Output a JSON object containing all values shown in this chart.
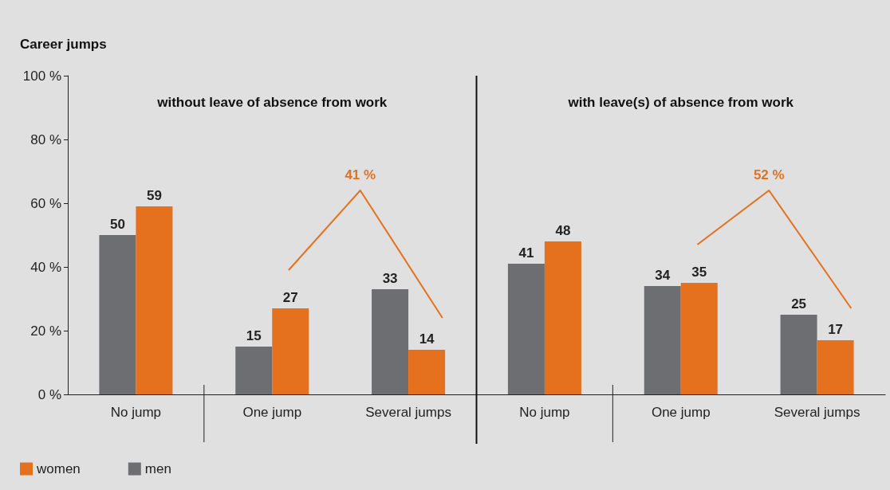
{
  "chart_data": {
    "type": "bar",
    "title": "Career jumps",
    "categories": [
      "No jump",
      "One jump",
      "Several jumps",
      "No jump",
      "One jump",
      "Several jumps"
    ],
    "series": [
      {
        "name": "men",
        "color": "#6d6e71",
        "values": [
          50,
          15,
          33,
          41,
          34,
          25
        ]
      },
      {
        "name": "women",
        "color": "#e5711f",
        "values": [
          59,
          27,
          14,
          48,
          35,
          17
        ]
      }
    ],
    "ylim": [
      0,
      100
    ],
    "yticks": [
      {
        "value": 0,
        "label": "0 %"
      },
      {
        "value": 20,
        "label": "20 %"
      },
      {
        "value": 40,
        "label": "40 %"
      },
      {
        "value": 60,
        "label": "60 %"
      },
      {
        "value": 80,
        "label": "80 %"
      },
      {
        "value": 100,
        "label": "100 %"
      }
    ],
    "annotations": [
      "without leave of absence from work",
      "with leave(s) of absence from work",
      "41 %",
      "52 %"
    ],
    "data_labels": true,
    "grid": false,
    "legend": "bottom left"
  }
}
